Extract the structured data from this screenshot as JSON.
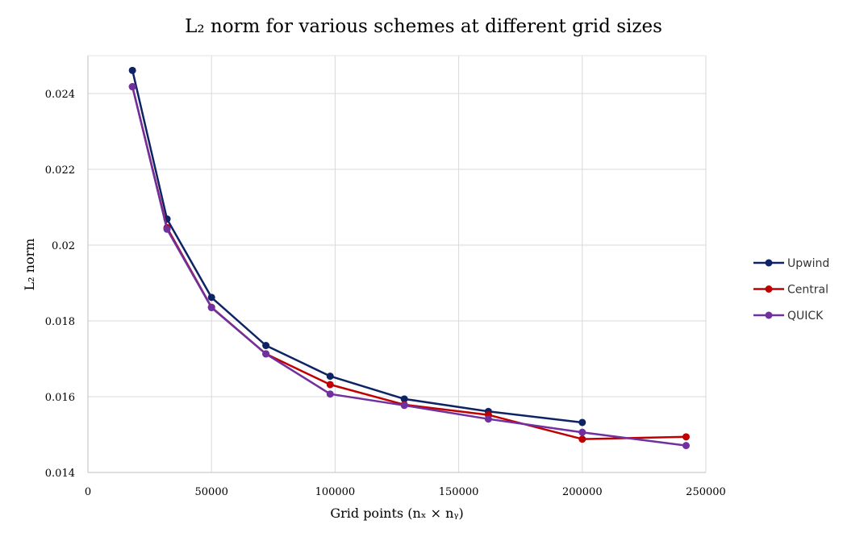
{
  "chart_data": {
    "type": "line",
    "title": "L₂ norm for various schemes at different grid sizes",
    "xlabel": "Grid points (nₓ × nᵧ)",
    "ylabel": "L₂ norm",
    "xlim": [
      0,
      250000
    ],
    "ylim": [
      0.014,
      0.025
    ],
    "x_ticks": [
      0,
      50000,
      100000,
      150000,
      200000,
      250000
    ],
    "x_tick_labels": [
      "0",
      "50000",
      "100000",
      "150000",
      "200000",
      "250000"
    ],
    "y_ticks": [
      0.014,
      0.016,
      0.018,
      0.02,
      0.022,
      0.024
    ],
    "y_tick_labels": [
      "0.014",
      "0.016",
      "0.018",
      "0.02",
      "0.022",
      "0.024"
    ],
    "grid": true,
    "legend_position": "right",
    "series": [
      {
        "name": "Upwind",
        "color": "#0d2364",
        "x": [
          18000,
          32000,
          50000,
          72000,
          98000,
          128000,
          162000,
          200000
        ],
        "y": [
          0.02461,
          0.02069,
          0.01862,
          0.01735,
          0.01654,
          0.01594,
          0.01561,
          0.01532
        ]
      },
      {
        "name": "Central",
        "color": "#c00000",
        "x": [
          18000,
          32000,
          50000,
          72000,
          98000,
          128000,
          162000,
          200000,
          242000
        ],
        "y": [
          0.02418,
          0.02046,
          0.01836,
          0.01713,
          0.01632,
          0.01579,
          0.01552,
          0.01488,
          0.01494
        ]
      },
      {
        "name": "QUICK",
        "color": "#7030a0",
        "x": [
          18000,
          32000,
          50000,
          72000,
          98000,
          128000,
          162000,
          200000,
          242000
        ],
        "y": [
          0.02418,
          0.02042,
          0.01835,
          0.01713,
          0.01607,
          0.01577,
          0.01541,
          0.01506,
          0.01471
        ]
      }
    ]
  }
}
